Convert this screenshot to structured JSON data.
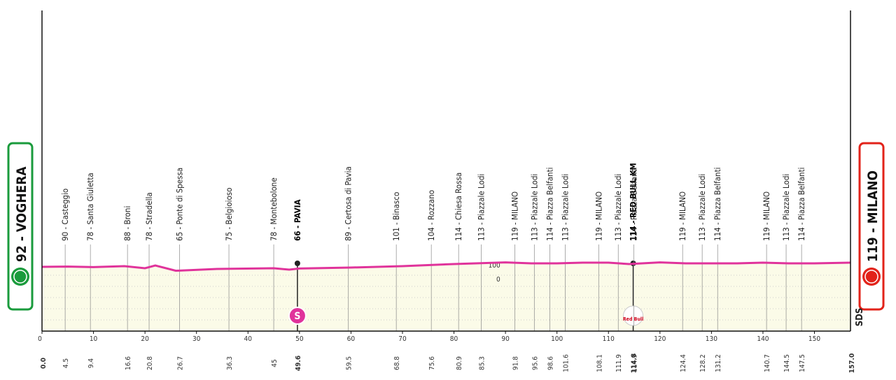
{
  "chart_data": {
    "type": "profile",
    "start": {
      "label": "92 - VOGHERA",
      "color": "#1a9b3c"
    },
    "finish": {
      "label": "119 - MILANO",
      "color": "#e2231a"
    },
    "xlim": [
      {
        "value": 0,
        "label": "0.0"
      },
      {
        "value": 157,
        "label": "157.0"
      }
    ],
    "xticks": [
      0,
      10,
      20,
      30,
      40,
      50,
      60,
      70,
      80,
      90,
      100,
      110,
      120,
      130,
      140,
      150
    ],
    "yticks": [
      0,
      100
    ],
    "line_color": "#e0339b",
    "fill_color": "#fbfbe8",
    "waypoints": [
      {
        "km": 4.5,
        "label": "90 - Casteggio"
      },
      {
        "km": 9.4,
        "label": "78 - Santa Giuletta"
      },
      {
        "km": 16.6,
        "label": "88 - Broni"
      },
      {
        "km": 20.8,
        "label": "78 - Stradella"
      },
      {
        "km": 26.7,
        "label": "65 - Ponte di Spessa"
      },
      {
        "km": 36.3,
        "label": "75 - Belgioioso"
      },
      {
        "km": 45.0,
        "label": "78 - Montebolone"
      },
      {
        "km": 49.6,
        "label": "66 - PAVIA",
        "bold": true,
        "badge": "S"
      },
      {
        "km": 59.5,
        "label": "89 - Certosa di Pavia"
      },
      {
        "km": 68.8,
        "label": "101 - Binasco"
      },
      {
        "km": 75.6,
        "label": "104 - Rozzano"
      },
      {
        "km": 80.9,
        "label": "114 - Chiesa Rossa"
      },
      {
        "km": 85.3,
        "label": "113 - Piazzale Lodi"
      },
      {
        "km": 91.8,
        "label": "119 - MILANO"
      },
      {
        "km": 95.6,
        "label": "113 - Piazzale Lodi"
      },
      {
        "km": 98.6,
        "label": "114 - Piazza Belfanti"
      },
      {
        "km": 101.6,
        "label": "113 - Piazzale Lodi"
      },
      {
        "km": 108.1,
        "label": "119 - MILANO"
      },
      {
        "km": 111.9,
        "label": "113 - Piazzale Lodi"
      },
      {
        "km": 114.8,
        "label": "114 - RED BULL KM",
        "bold": true,
        "badge": "Red Bull"
      },
      {
        "km": 114.9,
        "label": "114 - Piazza Belfanti"
      },
      {
        "km": 124.4,
        "label": "119 - MILANO"
      },
      {
        "km": 128.2,
        "label": "113 - Piazzale Lodi"
      },
      {
        "km": 131.2,
        "label": "114 - Piazza Belfanti"
      },
      {
        "km": 140.7,
        "label": "119 - MILANO"
      },
      {
        "km": 144.5,
        "label": "113 - Piazzale Lodi"
      },
      {
        "km": 147.5,
        "label": "114 - Piazza Belfanti"
      }
    ],
    "profile": {
      "x": [
        0,
        5,
        10,
        16,
        20,
        22,
        26,
        34,
        45,
        48,
        50,
        60,
        70,
        80,
        90,
        95,
        100,
        105,
        110,
        114,
        120,
        125,
        130,
        135,
        140,
        145,
        150,
        157
      ],
      "y": [
        90,
        92,
        88,
        95,
        80,
        100,
        62,
        75,
        80,
        70,
        78,
        85,
        95,
        110,
        122,
        115,
        115,
        120,
        120,
        110,
        122,
        115,
        115,
        115,
        120,
        115,
        115,
        120
      ]
    },
    "logo": "SDS"
  }
}
